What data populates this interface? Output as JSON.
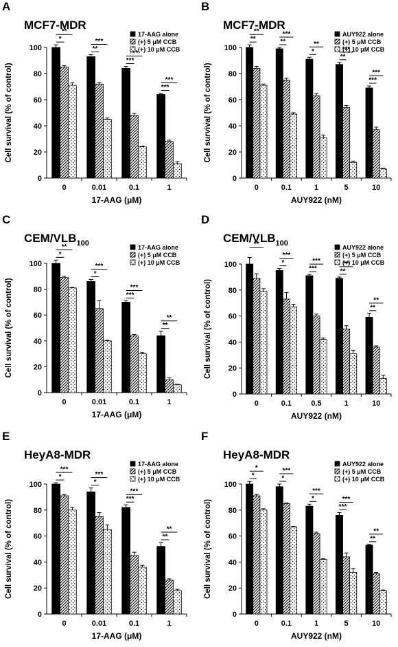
{
  "figure": {
    "colors": {
      "black": "#000000",
      "white": "#ffffff"
    },
    "fill_patterns": [
      "solid-black",
      "diagonal-hatch",
      "dotted"
    ]
  },
  "chart_data": [
    {
      "panel": "A",
      "title": "MCF7-MDR",
      "subscript": "",
      "type": "bar",
      "categories": [
        "0",
        "0.01",
        "0.1",
        "1"
      ],
      "xlabel": "17-AAG (μM)",
      "ylabel": "Cell survival (% of control)",
      "ylim": [
        0,
        100
      ],
      "yticks": [
        0,
        20,
        40,
        60,
        80,
        100
      ],
      "grid": false,
      "legend_position": "top-right",
      "series": [
        {
          "name": "17-AAG alone",
          "values": [
            100,
            93,
            84,
            64
          ],
          "errors": [
            2,
            1.5,
            1.5,
            1
          ]
        },
        {
          "name": "(+) 5 μM CCB",
          "values": [
            85,
            72,
            48,
            28
          ],
          "errors": [
            1,
            1,
            1.5,
            1
          ]
        },
        {
          "name": "(+) 10 μM CCB",
          "values": [
            71,
            45,
            24,
            11
          ],
          "errors": [
            2,
            1,
            0.5,
            1.5
          ]
        }
      ],
      "significance": [
        [
          "**",
          "*"
        ],
        [
          "***",
          "**"
        ],
        [
          "***",
          "***"
        ],
        [
          "***",
          "***"
        ]
      ]
    },
    {
      "panel": "B",
      "title": "MCF7-MDR",
      "subscript": "",
      "type": "bar",
      "categories": [
        "0",
        "0.1",
        "1",
        "5",
        "10"
      ],
      "xlabel": "AUY922 (nM)",
      "ylabel": "Cell survival (% of control)",
      "ylim": [
        0,
        100
      ],
      "yticks": [
        0,
        20,
        40,
        60,
        80,
        100
      ],
      "grid": false,
      "legend_position": "top-right",
      "series": [
        {
          "name": "AUY922 alone",
          "values": [
            100,
            99,
            91,
            87,
            69
          ],
          "errors": [
            2,
            1,
            1.5,
            1.5,
            1.5
          ]
        },
        {
          "name": "(+) 5 μM CCB",
          "values": [
            84,
            75,
            63,
            54,
            37
          ],
          "errors": [
            1.5,
            1.5,
            1.5,
            1.5,
            2
          ]
        },
        {
          "name": "(+) 10 μM CCB",
          "values": [
            71,
            49,
            31,
            12,
            7
          ],
          "errors": [
            1,
            1,
            2,
            1,
            0.5
          ]
        }
      ],
      "significance": [
        [
          "**",
          "**"
        ],
        [
          "***",
          "**"
        ],
        [
          "**",
          "*"
        ],
        [
          "***",
          "**"
        ],
        [
          "***",
          "***"
        ]
      ]
    },
    {
      "panel": "C",
      "title": "CEM/VLB",
      "subscript": "100",
      "type": "bar",
      "categories": [
        "0",
        "0.01",
        "0.1",
        "1"
      ],
      "xlabel": "17-AAG (μM)",
      "ylabel": "Cell survival (% of control)",
      "ylim": [
        0,
        100
      ],
      "yticks": [
        0,
        20,
        40,
        60,
        80,
        100
      ],
      "grid": false,
      "legend_position": "top-right",
      "series": [
        {
          "name": "17-AAG alone",
          "values": [
            100,
            86,
            70,
            44
          ],
          "errors": [
            2.5,
            1.5,
            1,
            3.5
          ]
        },
        {
          "name": "(+) 5 μM CCB",
          "values": [
            89,
            65,
            44,
            10
          ],
          "errors": [
            1,
            6,
            1,
            1.5
          ]
        },
        {
          "name": "(+) 10 μM CCB",
          "values": [
            81,
            40,
            30,
            6
          ],
          "errors": [
            0.5,
            0.5,
            1,
            0.5
          ]
        }
      ],
      "significance": [
        [
          "**",
          "*"
        ],
        [
          "***",
          "*"
        ],
        [
          "***",
          "***"
        ],
        [
          "**",
          "**"
        ]
      ]
    },
    {
      "panel": "D",
      "title": "CEM/VLB",
      "subscript": "100",
      "type": "bar",
      "categories": [
        "0",
        "0.1",
        "0.5",
        "1",
        "10"
      ],
      "xlabel": "AUY922 (nM)",
      "ylabel": "Cell survival (% of control)",
      "ylim": [
        0,
        100
      ],
      "yticks": [
        0,
        20,
        40,
        60,
        80,
        100
      ],
      "grid": false,
      "legend_position": "top-right",
      "series": [
        {
          "name": "AUY922 alone",
          "values": [
            100,
            95,
            91,
            89,
            59
          ],
          "errors": [
            5,
            1.5,
            1,
            1,
            3
          ]
        },
        {
          "name": "(+) 5 μM CCB",
          "values": [
            89,
            73,
            60,
            50,
            36
          ],
          "errors": [
            3.5,
            5,
            1.5,
            2.5,
            1
          ]
        },
        {
          "name": "(+) 10 μM CCB",
          "values": [
            79,
            67,
            42,
            31,
            12
          ],
          "errors": [
            2,
            2,
            1,
            2.5,
            2.5
          ]
        }
      ],
      "significance": [
        [
          "**",
          ""
        ],
        [
          "***",
          "*"
        ],
        [
          "***",
          "***"
        ],
        [
          "**",
          "**"
        ],
        [
          "**",
          "**"
        ]
      ]
    },
    {
      "panel": "E",
      "title": "HeyA8-MDR",
      "subscript": "",
      "type": "bar",
      "categories": [
        "0",
        "0.01",
        "0.1",
        "1"
      ],
      "xlabel": "17-AAG (μM)",
      "ylabel": "Cell survival (% of control)",
      "ylim": [
        0,
        100
      ],
      "yticks": [
        0,
        20,
        40,
        60,
        80,
        100
      ],
      "grid": false,
      "legend_position": "top-right",
      "series": [
        {
          "name": "17-AAG alone",
          "values": [
            100,
            94,
            82,
            52
          ],
          "errors": [
            1,
            3,
            2,
            3
          ]
        },
        {
          "name": "(+) 5 μM CCB",
          "values": [
            91,
            75,
            45,
            26
          ],
          "errors": [
            1,
            3,
            2.5,
            1
          ]
        },
        {
          "name": "(+) 10 μM CCB",
          "values": [
            80,
            65,
            36,
            18
          ],
          "errors": [
            2,
            3.5,
            1.5,
            1
          ]
        }
      ],
      "significance": [
        [
          "***",
          "*"
        ],
        [
          "***",
          "*"
        ],
        [
          "***",
          "***"
        ],
        [
          "**",
          "**"
        ]
      ]
    },
    {
      "panel": "F",
      "title": "HeyA8-MDR",
      "subscript": "",
      "type": "bar",
      "categories": [
        "0",
        "0.1",
        "1",
        "5",
        "10"
      ],
      "xlabel": "AUY922 (nM)",
      "ylabel": "Cell survival (% of control)",
      "ylim": [
        0,
        100
      ],
      "yticks": [
        0,
        20,
        40,
        60,
        80,
        100
      ],
      "grid": false,
      "legend_position": "top-right",
      "series": [
        {
          "name": "AUY922 alone",
          "values": [
            100,
            98,
            83,
            76,
            53
          ],
          "errors": [
            2,
            2,
            1.5,
            2,
            0.5
          ]
        },
        {
          "name": "(+) 5 μM CCB",
          "values": [
            91,
            85,
            62,
            44,
            31
          ],
          "errors": [
            1,
            0.5,
            1,
            3,
            1
          ]
        },
        {
          "name": "(+) 10 μM CCB",
          "values": [
            80,
            67,
            42,
            32,
            18
          ],
          "errors": [
            1,
            0.5,
            0.5,
            3,
            0.5
          ]
        }
      ],
      "significance": [
        [
          "*",
          "*"
        ],
        [
          "***",
          "*"
        ],
        [
          "***",
          "*"
        ],
        [
          "***",
          "***"
        ],
        [
          "**",
          "**"
        ]
      ]
    }
  ]
}
